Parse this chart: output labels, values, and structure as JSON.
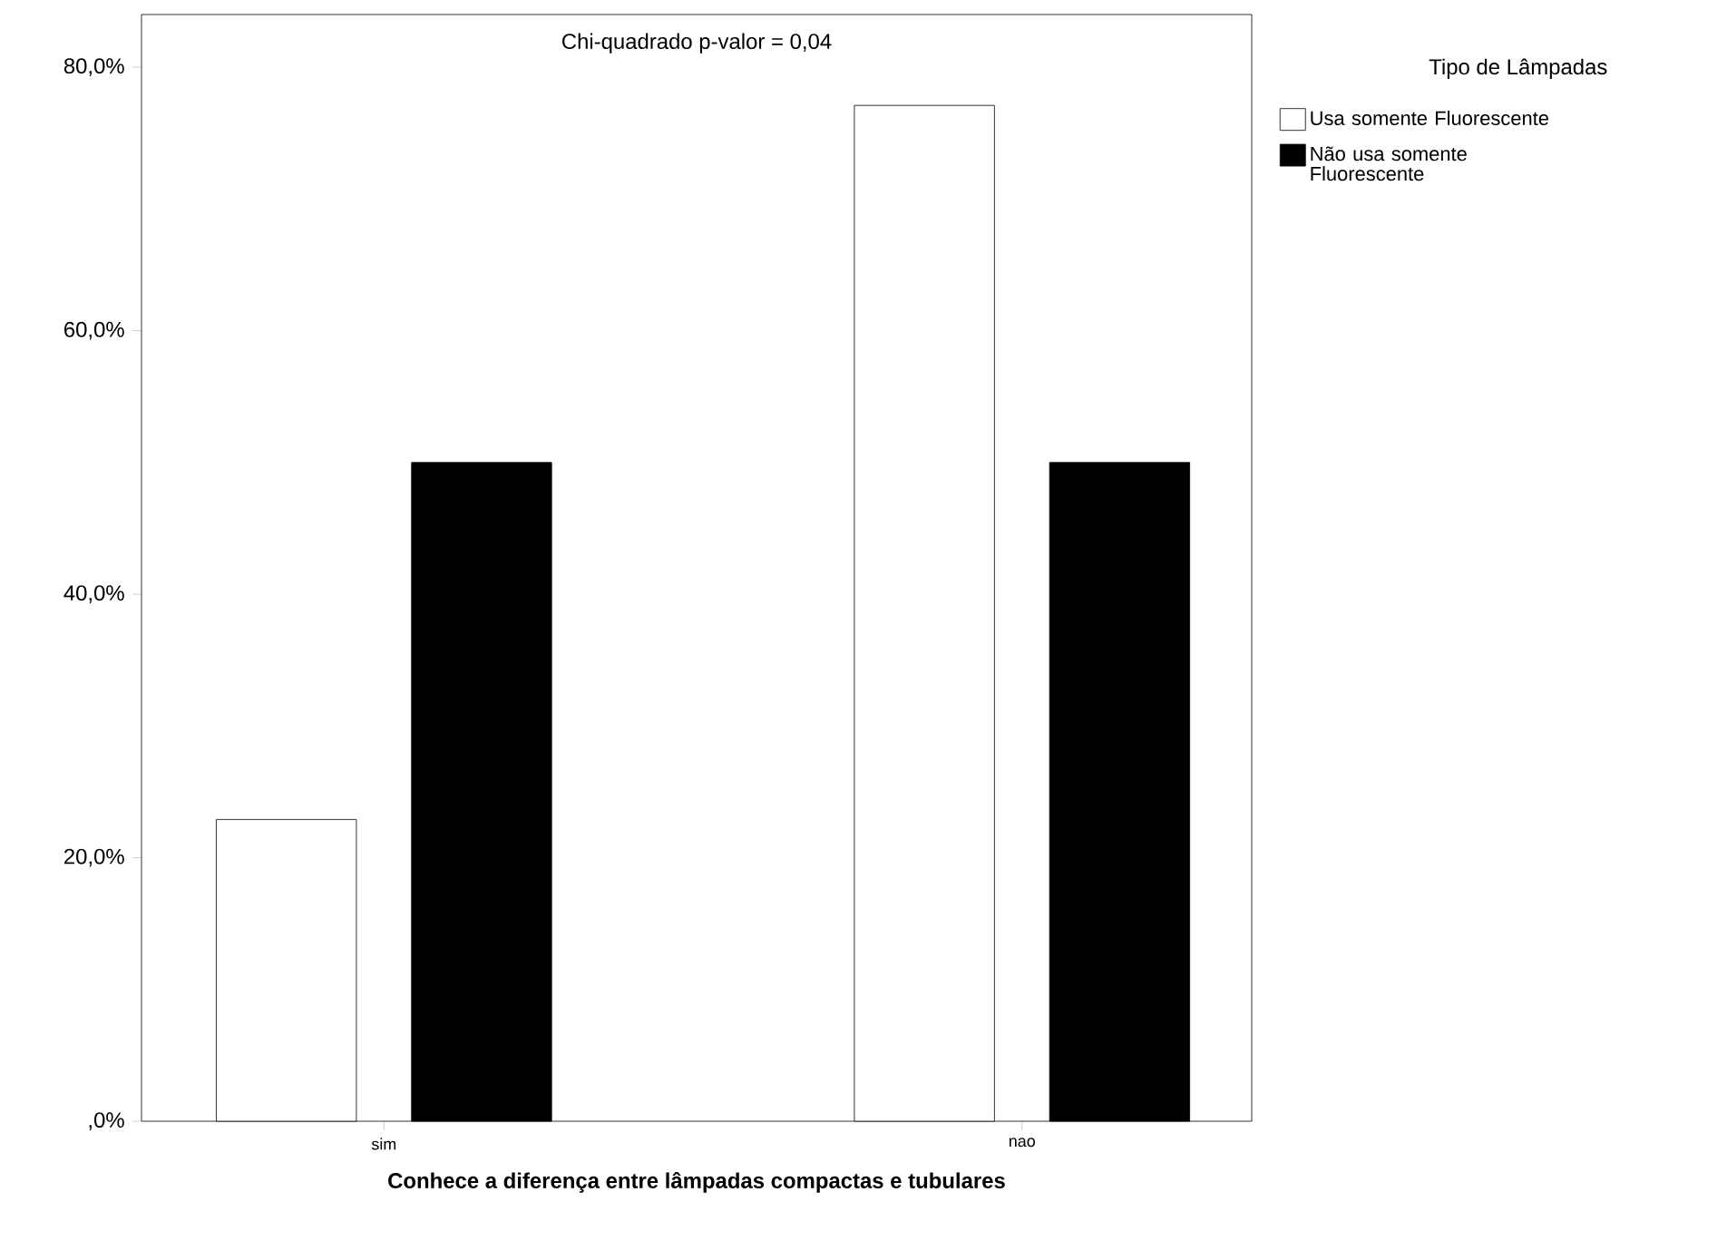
{
  "chart_data": {
    "type": "bar",
    "xlabel": "Conhece a diferença entre lâmpadas compactas e tubulares",
    "legend_title": "Tipo de Lâmpadas",
    "annotations": [
      "Chi-quadrado p-valor = 0,04"
    ],
    "categories": [
      "sim",
      "nao"
    ],
    "series": [
      {
        "name": "Usa somente Fluorescente",
        "color": "#ffffff",
        "values": [
          22.9,
          77.1
        ]
      },
      {
        "name": "Não usa somente Fluorescente",
        "color": "#000000",
        "values": [
          50.0,
          50.0
        ]
      }
    ],
    "ylim": [
      0,
      84
    ],
    "yticks": [
      {
        "value": 0,
        "label": ",0%"
      },
      {
        "value": 20,
        "label": "20,0%"
      },
      {
        "value": 40,
        "label": "40,0%"
      },
      {
        "value": 60,
        "label": "60,0%"
      },
      {
        "value": 80,
        "label": "80,0%"
      }
    ],
    "grid": false,
    "legend": "right"
  }
}
